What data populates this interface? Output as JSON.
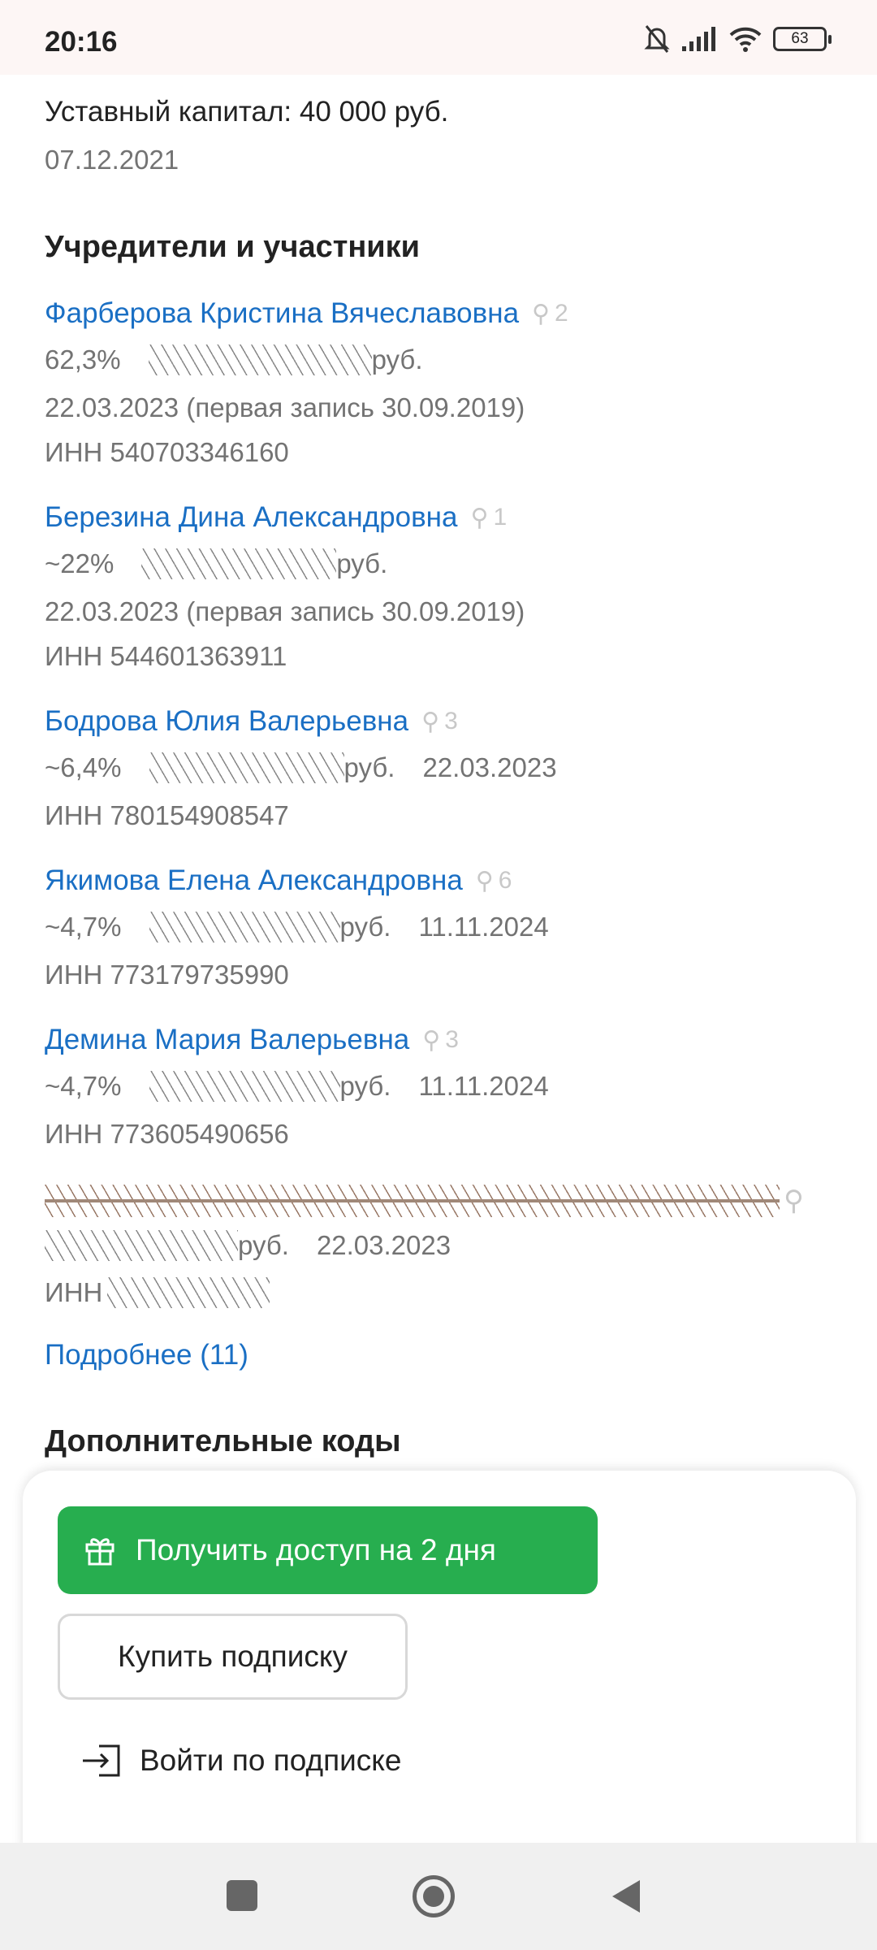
{
  "status_bar": {
    "time": "20:16",
    "battery": "63"
  },
  "capital": {
    "text": "Уставный капитал: 40 000 руб.",
    "date": "07.12.2021"
  },
  "founders": {
    "heading": "Учредители и участники",
    "items": [
      {
        "name": "Фарберова Кристина Вячеславовна",
        "count": "2",
        "share": "62,3%",
        "currency": "руб.",
        "date_line": "22.03.2023 (первая запись 30.09.2019)",
        "inn": "ИНН 540703346160"
      },
      {
        "name": "Березина Дина Александровна",
        "count": "1",
        "share": "~22%",
        "currency": "руб.",
        "date_line": "22.03.2023 (первая запись 30.09.2019)",
        "inn": "ИНН 544601363911"
      },
      {
        "name": "Бодрова Юлия Валерьевна",
        "count": "3",
        "share": "~6,4%",
        "currency": "руб.",
        "date": "22.03.2023",
        "inn": "ИНН 780154908547"
      },
      {
        "name": "Якимова Елена Александровна",
        "count": "6",
        "share": "~4,7%",
        "currency": "руб.",
        "date": "11.11.2024",
        "inn": "ИНН 773179735990"
      },
      {
        "name": "Демина Мария Валерьевна",
        "count": "3",
        "share": "~4,7%",
        "currency": "руб.",
        "date": "11.11.2024",
        "inn": "ИНН 773605490656"
      },
      {
        "currency": "руб.",
        "date": "22.03.2023",
        "inn_label": "ИНН"
      }
    ],
    "more_link": "Подробнее (11)"
  },
  "next_heading": "Дополнительные коды",
  "paywall": {
    "trial_button": "Получить доступ на 2 дня",
    "buy_button": "Купить подписку",
    "login_button": "Войти по подписке"
  }
}
